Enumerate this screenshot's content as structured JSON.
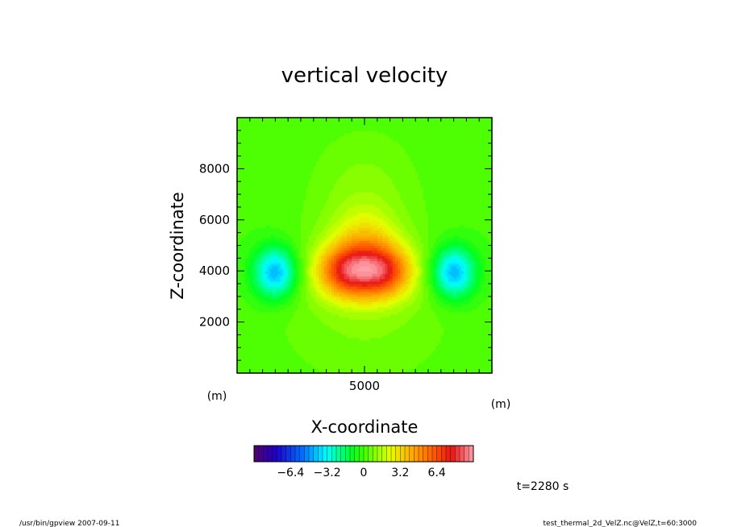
{
  "chart_data": {
    "type": "heatmap",
    "title": "vertical velocity",
    "xlabel": "X-coordinate",
    "ylabel": "Z-coordinate",
    "x_unit": "(m)",
    "y_unit": "(m)",
    "xlim": [
      0,
      10000
    ],
    "ylim": [
      0,
      10000
    ],
    "x_ticks": [
      5000
    ],
    "y_ticks": [
      2000,
      4000,
      6000,
      8000
    ],
    "colorbar": {
      "range": [
        -9.6,
        9.6
      ],
      "step": 0.4,
      "tick_values": [
        -6.4,
        -3.2,
        0,
        3.2,
        6.4
      ],
      "tick_labels": [
        "−6.4",
        "−3.2",
        "0",
        "3.2",
        "6.4"
      ]
    },
    "features": [
      {
        "kind": "updraft",
        "x": 5000,
        "z": 4000,
        "sx": 1150,
        "sz": 750,
        "peak": 7.2
      },
      {
        "kind": "updraft-cap",
        "x": 5000,
        "z": 5200,
        "sx": 900,
        "sz": 900,
        "peak": 2.0
      },
      {
        "kind": "updraft-lobe",
        "x": 4100,
        "z": 4000,
        "sx": 550,
        "sz": 600,
        "peak": 1.4
      },
      {
        "kind": "updraft-lobe",
        "x": 5900,
        "z": 4000,
        "sx": 550,
        "sz": 600,
        "peak": 1.4
      },
      {
        "kind": "downdraft",
        "x": 1500,
        "z": 3950,
        "sx": 600,
        "sz": 700,
        "peak": -4.6
      },
      {
        "kind": "downdraft",
        "x": 8500,
        "z": 3950,
        "sx": 600,
        "sz": 700,
        "peak": -4.6
      },
      {
        "kind": "plume",
        "x": 5000,
        "z": 7200,
        "sx": 1600,
        "sz": 1800,
        "peak": 0.9
      },
      {
        "kind": "background",
        "x": 5000,
        "z": 2500,
        "sx": 2600,
        "sz": 2200,
        "peak": 0.9
      }
    ]
  },
  "annotations": {
    "time": "t=2280 s",
    "footer_left": "/usr/bin/gpview   2007-09-11",
    "footer_right": "test_thermal_2d_VelZ.nc@VelZ,t=60:3000"
  }
}
